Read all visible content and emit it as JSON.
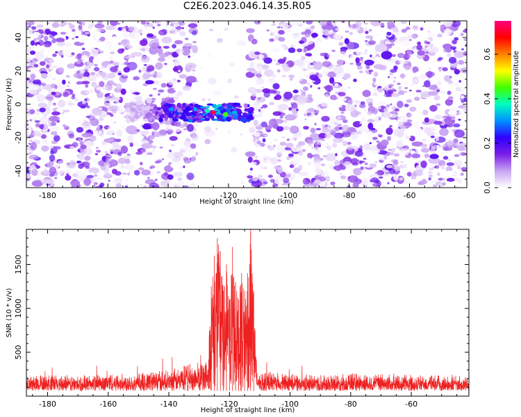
{
  "title": "C2E6.2023.046.14.35.R05",
  "chart_data": [
    {
      "type": "heatmap",
      "xlabel": "Height of straight line (km)",
      "ylabel": "Frequency (Hz)",
      "xlim": [
        -187,
        -41
      ],
      "ylim": [
        -50,
        50
      ],
      "xticks": [
        -180,
        -160,
        -140,
        -120,
        -100,
        -80,
        -60
      ],
      "yticks": [
        -40,
        -20,
        0,
        20,
        40
      ],
      "colorbar": {
        "label": "Normalized spectral amplitude",
        "range": [
          0.0,
          0.75
        ],
        "ticks": [
          0.0,
          0.2,
          0.4,
          0.6
        ],
        "tick_labels": [
          "0.0",
          "0.2",
          "0.4",
          "0.6"
        ],
        "colormap": [
          "#ffffff",
          "#c8a4f2",
          "#7a1ee6",
          "#3000ff",
          "#0090ff",
          "#00ffc0",
          "#40ff00",
          "#ffff00",
          "#ff8000",
          "#ff0000",
          "#ff0080"
        ]
      },
      "features": {
        "blank_gap_km": [
          -131,
          -113
        ],
        "signal_band": {
          "x_range": [
            -154,
            -112
          ],
          "freq_center": -5,
          "freq_halfwidth": 5,
          "peak_amplitude": 0.75,
          "peak_x": -125
        }
      },
      "grid": false
    },
    {
      "type": "line",
      "xlabel": "Height of straight line (km)",
      "ylabel": "SNR (10 * v/v)",
      "xlim": [
        -187,
        -41
      ],
      "ylim": [
        0,
        1900
      ],
      "xticks": [
        -180,
        -160,
        -140,
        -120,
        -100,
        -80,
        -60
      ],
      "yticks": [
        500,
        1000,
        1500
      ],
      "series_color": "#ee2020",
      "noise_floor": [
        60,
        320
      ],
      "series": [
        {
          "x": [
            -187,
            -180,
            -170,
            -160,
            -150,
            -145,
            -140,
            -135,
            -130,
            -127,
            -126,
            -125,
            -124,
            -123,
            -122,
            -121,
            -120,
            -119,
            -118,
            -117,
            -116,
            -115,
            -114,
            -113,
            -112,
            -111,
            -110,
            -100,
            -90,
            -80,
            -70,
            -60,
            -50,
            -41
          ],
          "y": [
            250,
            260,
            250,
            280,
            270,
            330,
            300,
            380,
            420,
            480,
            1250,
            1600,
            1800,
            1650,
            1200,
            1500,
            1100,
            1700,
            1300,
            1100,
            1400,
            1200,
            1400,
            1900,
            1200,
            300,
            290,
            270,
            260,
            280,
            270,
            260,
            250,
            250
          ]
        }
      ],
      "grid": false
    }
  ]
}
